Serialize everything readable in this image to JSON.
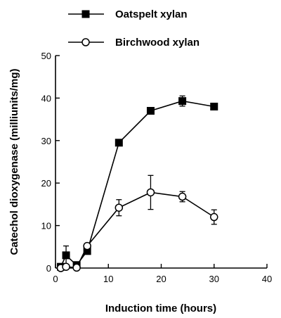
{
  "chart_data": {
    "type": "line",
    "xlabel": "Induction time (hours)",
    "ylabel": "Catechol dioxygenase (milliunits/mg)",
    "xlim": [
      0,
      40
    ],
    "ylim": [
      0,
      50
    ],
    "xticks": [
      0,
      10,
      20,
      30,
      40
    ],
    "yticks": [
      0,
      10,
      20,
      30,
      40,
      50
    ],
    "grid": false,
    "legend_position": "top",
    "series": [
      {
        "name": "Oatspelt xylan",
        "marker": "filled-square",
        "color": "#000000",
        "points": [
          {
            "x": 1,
            "y": 0.3,
            "err": 0
          },
          {
            "x": 2,
            "y": 3,
            "err": 2.2
          },
          {
            "x": 4,
            "y": 0.7,
            "err": 0
          },
          {
            "x": 6,
            "y": 4,
            "err": 0
          },
          {
            "x": 12,
            "y": 29.5,
            "err": 0
          },
          {
            "x": 18,
            "y": 37,
            "err": 0
          },
          {
            "x": 24,
            "y": 39.3,
            "err": 1.2
          },
          {
            "x": 30,
            "y": 38,
            "err": 0
          }
        ]
      },
      {
        "name": "Birchwood xylan",
        "marker": "open-circle",
        "color": "#000000",
        "points": [
          {
            "x": 1,
            "y": 0,
            "err": 0
          },
          {
            "x": 2,
            "y": 0.3,
            "err": 0
          },
          {
            "x": 4,
            "y": 0.1,
            "err": 0
          },
          {
            "x": 6,
            "y": 5.2,
            "err": 0
          },
          {
            "x": 12,
            "y": 14.2,
            "err": 1.9
          },
          {
            "x": 18,
            "y": 17.8,
            "err": 4
          },
          {
            "x": 24,
            "y": 16.8,
            "err": 1.2
          },
          {
            "x": 30,
            "y": 12,
            "err": 1.7
          }
        ]
      }
    ]
  }
}
